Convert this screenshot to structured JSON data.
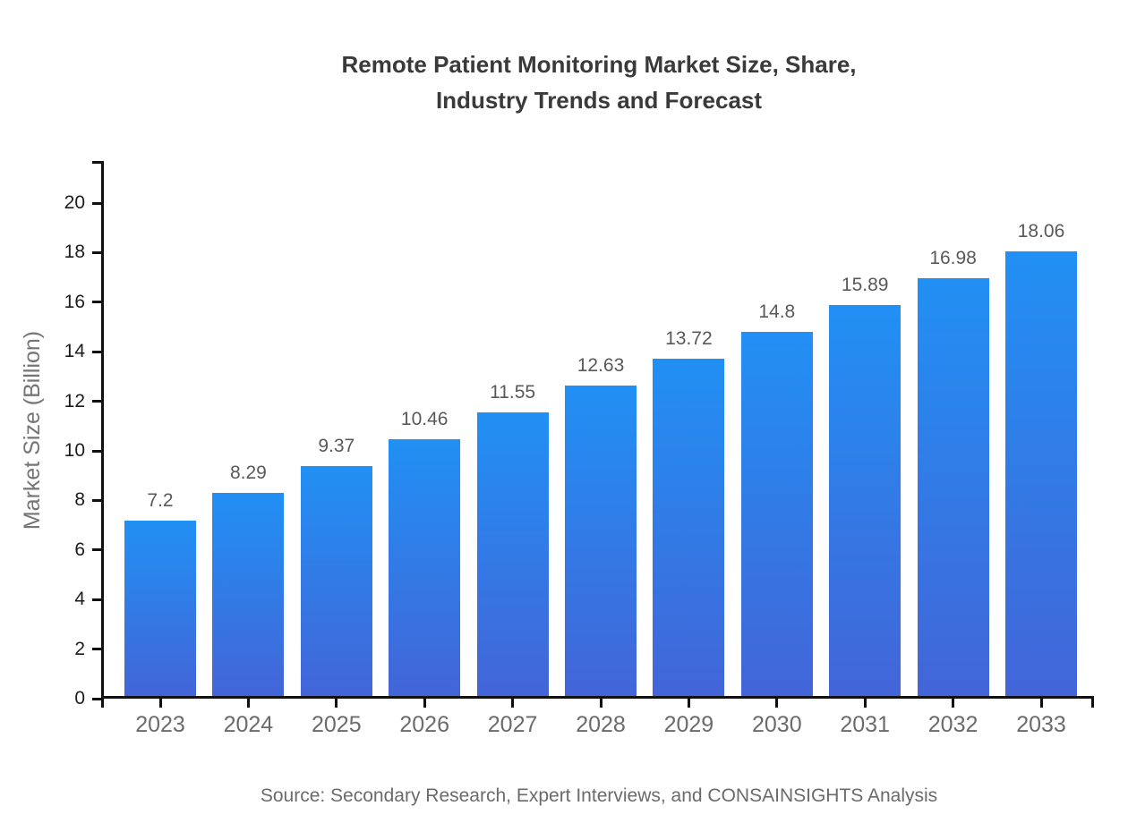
{
  "title": {
    "line1": "Remote Patient Monitoring Market Size, Share,",
    "line2": "Industry Trends and Forecast"
  },
  "source_note": "Source: Secondary Research, Expert Interviews, and CONSAINSIGHTS Analysis",
  "chart_data": {
    "type": "bar",
    "title": "Remote Patient Monitoring Market Size, Share, Industry Trends and Forecast",
    "xlabel": "",
    "ylabel": "Market Size (Billion)",
    "categories": [
      "2023",
      "2024",
      "2025",
      "2026",
      "2027",
      "2028",
      "2029",
      "2030",
      "2031",
      "2032",
      "2033"
    ],
    "values": [
      7.2,
      8.29,
      9.37,
      10.46,
      11.55,
      12.63,
      13.72,
      14.8,
      15.89,
      16.98,
      18.06
    ],
    "data_labels": [
      "7.2",
      "8.29",
      "9.37",
      "10.46",
      "11.55",
      "12.63",
      "13.72",
      "14.8",
      "15.89",
      "16.98",
      "18.06"
    ],
    "ylim": [
      0,
      21.7
    ],
    "yticks": [
      0,
      2,
      4,
      6,
      8,
      10,
      12,
      14,
      16,
      18,
      20
    ],
    "grid": false,
    "legend": "none",
    "colors": {
      "bar_gradient_top": "#2190f4",
      "bar_gradient_bottom": "#4365d8",
      "axis_line": "#111111",
      "y_tick_label": "#1c1c1c",
      "x_tick_label": "#6b6b6b",
      "value_label": "#595959",
      "axis_title": "#757575",
      "title": "#3a3a3a",
      "source": "#6b6b6b",
      "background": "#ffffff"
    }
  }
}
